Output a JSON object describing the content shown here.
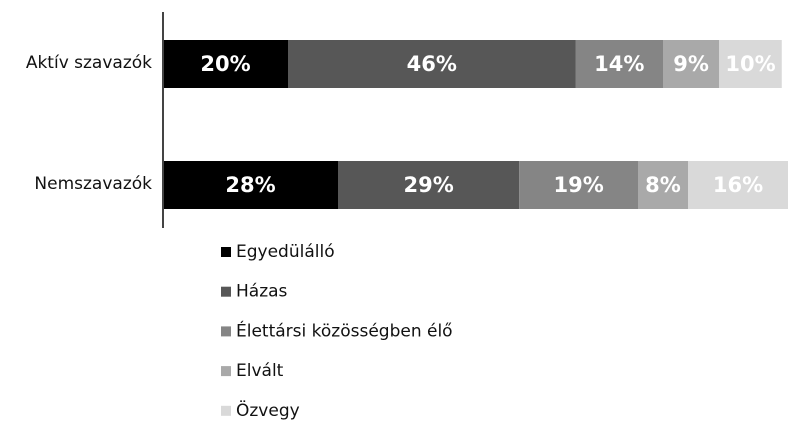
{
  "chart_data": {
    "type": "stacked_bar",
    "orientation": "horizontal",
    "categories": [
      "Aktív szavazók",
      "Nemszavazók"
    ],
    "series": [
      {
        "name": "Egyedülálló",
        "color": "#000000",
        "values": [
          20,
          28
        ],
        "value_labels": [
          "20%",
          "28%"
        ]
      },
      {
        "name": "Házas",
        "color": "#575757",
        "values": [
          46,
          29
        ],
        "value_labels": [
          "46%",
          "29%"
        ]
      },
      {
        "name": "Élettársi közösségben élő",
        "color": "#858585",
        "values": [
          14,
          19
        ],
        "value_labels": [
          "14%",
          "19%"
        ]
      },
      {
        "name": "Elvált",
        "color": "#a9a9a9",
        "values": [
          9,
          8
        ],
        "value_labels": [
          "9%",
          "8%"
        ]
      },
      {
        "name": "Özvegy",
        "color": "#d9d9d9",
        "values": [
          10,
          16
        ],
        "value_labels": [
          "10%",
          "16%"
        ]
      }
    ]
  }
}
